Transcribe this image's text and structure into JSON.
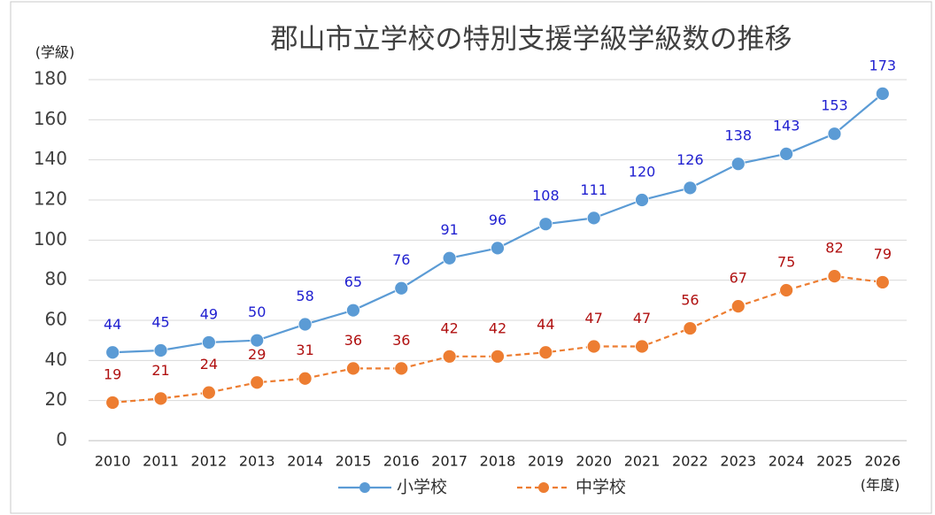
{
  "chart_data": {
    "type": "line",
    "title": "郡山市立学校の特別支援学級学級数の推移",
    "ylabel": "(学級)",
    "xlabel": "(年度)",
    "categories": [
      "2010",
      "2011",
      "2012",
      "2013",
      "2014",
      "2015",
      "2016",
      "2017",
      "2018",
      "2019",
      "2020",
      "2021",
      "2022",
      "2023",
      "2024",
      "2025",
      "2026"
    ],
    "series": [
      {
        "name": "小学校",
        "color": "#5b9bd5",
        "label_color": "#1f1fd0",
        "dash": false,
        "values": [
          44,
          45,
          49,
          50,
          58,
          65,
          76,
          91,
          96,
          108,
          111,
          120,
          126,
          138,
          143,
          153,
          173
        ]
      },
      {
        "name": "中学校",
        "color": "#ed7d31",
        "label_color": "#b01010",
        "dash": true,
        "values": [
          19,
          21,
          24,
          29,
          31,
          36,
          36,
          42,
          42,
          44,
          47,
          47,
          56,
          67,
          75,
          82,
          79
        ]
      }
    ],
    "ylim": [
      0,
      180
    ],
    "yticks": [
      0,
      20,
      40,
      60,
      80,
      100,
      120,
      140,
      160,
      180
    ],
    "grid": true,
    "legend": "bottom"
  }
}
